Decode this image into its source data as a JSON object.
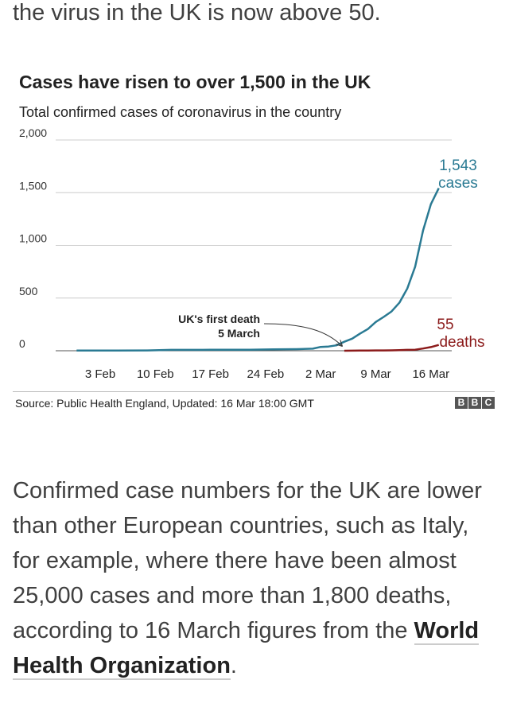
{
  "article": {
    "top_line": "the virus in the UK is now above 50.",
    "paragraph_text": "Confirmed case numbers for the UK are lower than other European countries, such as Italy, for example, where there have been almost 25,000 cases and more than 1,800 deaths, according to 16 March figures from the ",
    "link_text": "World Health Organization",
    "paragraph_end": "."
  },
  "chart": {
    "source": "Source: Public Health England, Updated: 16 Mar 18:00 GMT",
    "brand_letters": [
      "B",
      "B",
      "C"
    ]
  },
  "chart_data": {
    "type": "line",
    "title": "Cases have risen to over 1,500 in the UK",
    "subtitle": "Total confirmed cases of coronavirus in the country",
    "x_tick_labels": [
      "3 Feb",
      "10 Feb",
      "17 Feb",
      "24 Feb",
      "2 Mar",
      "9 Mar",
      "16 Mar"
    ],
    "x_tick_days": [
      3,
      10,
      17,
      24,
      31,
      38,
      45
    ],
    "xlim": [
      0,
      45
    ],
    "ylim": [
      0,
      2000
    ],
    "y_ticks": [
      0,
      500,
      1000,
      1500,
      2000
    ],
    "y_tick_labels": [
      "0",
      "500",
      "1,000",
      "1,500",
      "2,000"
    ],
    "grid": true,
    "series": [
      {
        "color": "#2a7a93",
        "end_value_label": "1,543",
        "end_unit_label": "cases",
        "points": [
          [
            0,
            2
          ],
          [
            5,
            2
          ],
          [
            9,
            3
          ],
          [
            12,
            8
          ],
          [
            17,
            9
          ],
          [
            22,
            9
          ],
          [
            25,
            13
          ],
          [
            28,
            15
          ],
          [
            30,
            20
          ],
          [
            31,
            36
          ],
          [
            32,
            40
          ],
          [
            33,
            51
          ],
          [
            34,
            85
          ],
          [
            35,
            115
          ],
          [
            36,
            163
          ],
          [
            37,
            206
          ],
          [
            38,
            273
          ],
          [
            39,
            321
          ],
          [
            40,
            373
          ],
          [
            41,
            456
          ],
          [
            42,
            590
          ],
          [
            43,
            798
          ],
          [
            44,
            1140
          ],
          [
            45,
            1391
          ],
          [
            46,
            1543
          ]
        ]
      },
      {
        "color": "#8b1a1a",
        "end_value_label": "55",
        "end_unit_label": "deaths",
        "points": [
          [
            34,
            0
          ],
          [
            35,
            1
          ],
          [
            36,
            2
          ],
          [
            37,
            2
          ],
          [
            38,
            3
          ],
          [
            39,
            3
          ],
          [
            40,
            4
          ],
          [
            41,
            6
          ],
          [
            42,
            8
          ],
          [
            43,
            10
          ],
          [
            44,
            21
          ],
          [
            45,
            35
          ],
          [
            46,
            55
          ]
        ]
      }
    ],
    "annotations": [
      {
        "lines": [
          "UK's first death",
          "5 March"
        ],
        "x": 34,
        "y": 1
      }
    ]
  }
}
